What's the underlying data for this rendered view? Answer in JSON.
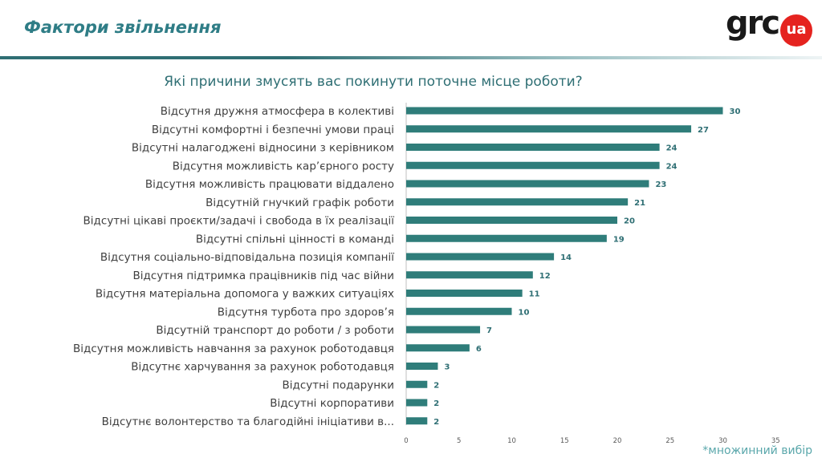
{
  "header": {
    "title": "Фактори звільнення",
    "logo_text": "grc",
    "logo_badge": "ua"
  },
  "footnote": "*множинний вибір",
  "colors": {
    "bar": "#2f7d7a",
    "value_label": "#2f6f74",
    "category_label": "#404040",
    "axis": "#bfbfbf",
    "title": "#2f6f74"
  },
  "chart_data": {
    "type": "bar",
    "orientation": "horizontal",
    "title": "Які причини змусять вас покинути поточне місце роботи?",
    "categories": [
      "Відсутня дружня атмосфера в колективі",
      "Відсутні комфортні і безпечні умови праці",
      "Відсутні налагоджені відносини з керівником",
      "Відсутня можливість кар’єрного росту",
      "Відсутня можливість працювати віддалено",
      "Відсутній гнучкий графік роботи",
      "Відсутні цікаві проєкти/задачі і свобода в їх реалізації",
      "Відсутні спільні цінності в команді",
      "Відсутня соціально-відповідальна позиція компанії",
      "Відсутня підтримка працівників під час війни",
      "Відсутня матеріальна допомога у важких ситуаціях",
      "Відсутня турбота про здоров’я",
      "Відсутній транспорт до роботи / з роботи",
      "Відсутня можливість навчання за рахунок роботодавця",
      "Відсутнє харчування за рахунок роботодавця",
      "Відсутні подарунки",
      "Відсутні корпоративи",
      "Відсутнє волонтерство та благодійні ініціативи в..."
    ],
    "values": [
      30,
      27,
      24,
      24,
      23,
      21,
      20,
      19,
      14,
      12,
      11,
      10,
      7,
      6,
      3,
      2,
      2,
      2
    ],
    "xlim": [
      0,
      35
    ],
    "xticks": [
      0,
      5,
      10,
      15,
      20,
      25,
      30,
      35
    ],
    "xlabel": "",
    "ylabel": "",
    "grid": false,
    "data_labels": true
  }
}
